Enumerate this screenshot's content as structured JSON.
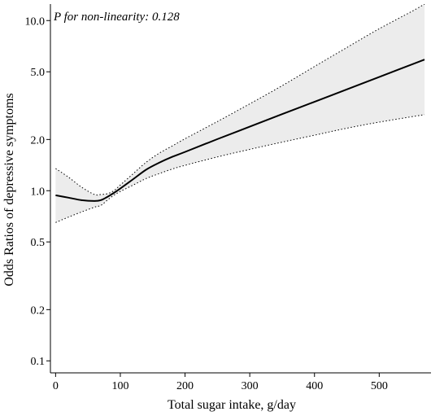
{
  "chart_data": {
    "type": "line",
    "annotation": "P for non-linearity: 0.128",
    "xlabel": "Total sugar intake, g/day",
    "ylabel": "Odds Ratios of depressive symptoms",
    "xlim": [
      -8,
      580
    ],
    "ylim": [
      0.085,
      12.5
    ],
    "y_scale": "log",
    "x_ticks": [
      0,
      100,
      200,
      300,
      400,
      500
    ],
    "x_tick_labels": [
      "0",
      "100",
      "200",
      "300",
      "400",
      "500"
    ],
    "y_ticks": [
      0.1,
      0.2,
      0.5,
      1.0,
      2.0,
      5.0,
      10.0
    ],
    "y_tick_labels": [
      "0.1",
      "0.2",
      "0.5",
      "1.0",
      "2.0",
      "5.0",
      "10.0"
    ],
    "grid": false,
    "series": [
      {
        "role": "estimate",
        "style": "solid",
        "x": [
          0,
          20,
          40,
          60,
          70,
          80,
          90,
          100,
          120,
          140,
          160,
          180,
          200,
          250,
          300,
          350,
          400,
          450,
          500,
          570
        ],
        "y": [
          0.94,
          0.91,
          0.88,
          0.87,
          0.88,
          0.92,
          0.97,
          1.03,
          1.17,
          1.33,
          1.46,
          1.58,
          1.69,
          2.01,
          2.38,
          2.82,
          3.33,
          3.94,
          4.66,
          5.9
        ]
      },
      {
        "role": "upper_ci",
        "style": "dotted",
        "x": [
          0,
          20,
          40,
          60,
          70,
          80,
          90,
          100,
          120,
          140,
          160,
          180,
          200,
          250,
          300,
          350,
          400,
          450,
          500,
          550,
          570
        ],
        "y": [
          1.35,
          1.2,
          1.05,
          0.95,
          0.95,
          0.96,
          1.0,
          1.08,
          1.26,
          1.47,
          1.66,
          1.83,
          2.02,
          2.55,
          3.24,
          4.14,
          5.37,
          6.94,
          8.95,
          11.3,
          12.5
        ]
      },
      {
        "role": "lower_ci",
        "style": "dotted",
        "x": [
          0,
          20,
          40,
          60,
          70,
          80,
          90,
          100,
          120,
          140,
          160,
          180,
          200,
          250,
          300,
          350,
          400,
          450,
          500,
          570
        ],
        "y": [
          0.65,
          0.7,
          0.75,
          0.8,
          0.82,
          0.88,
          0.94,
          0.99,
          1.08,
          1.18,
          1.26,
          1.34,
          1.41,
          1.58,
          1.75,
          1.93,
          2.12,
          2.33,
          2.53,
          2.8
        ]
      }
    ],
    "colors": {
      "line": "#000000",
      "band": "#ececec",
      "axis": "#000000"
    }
  }
}
